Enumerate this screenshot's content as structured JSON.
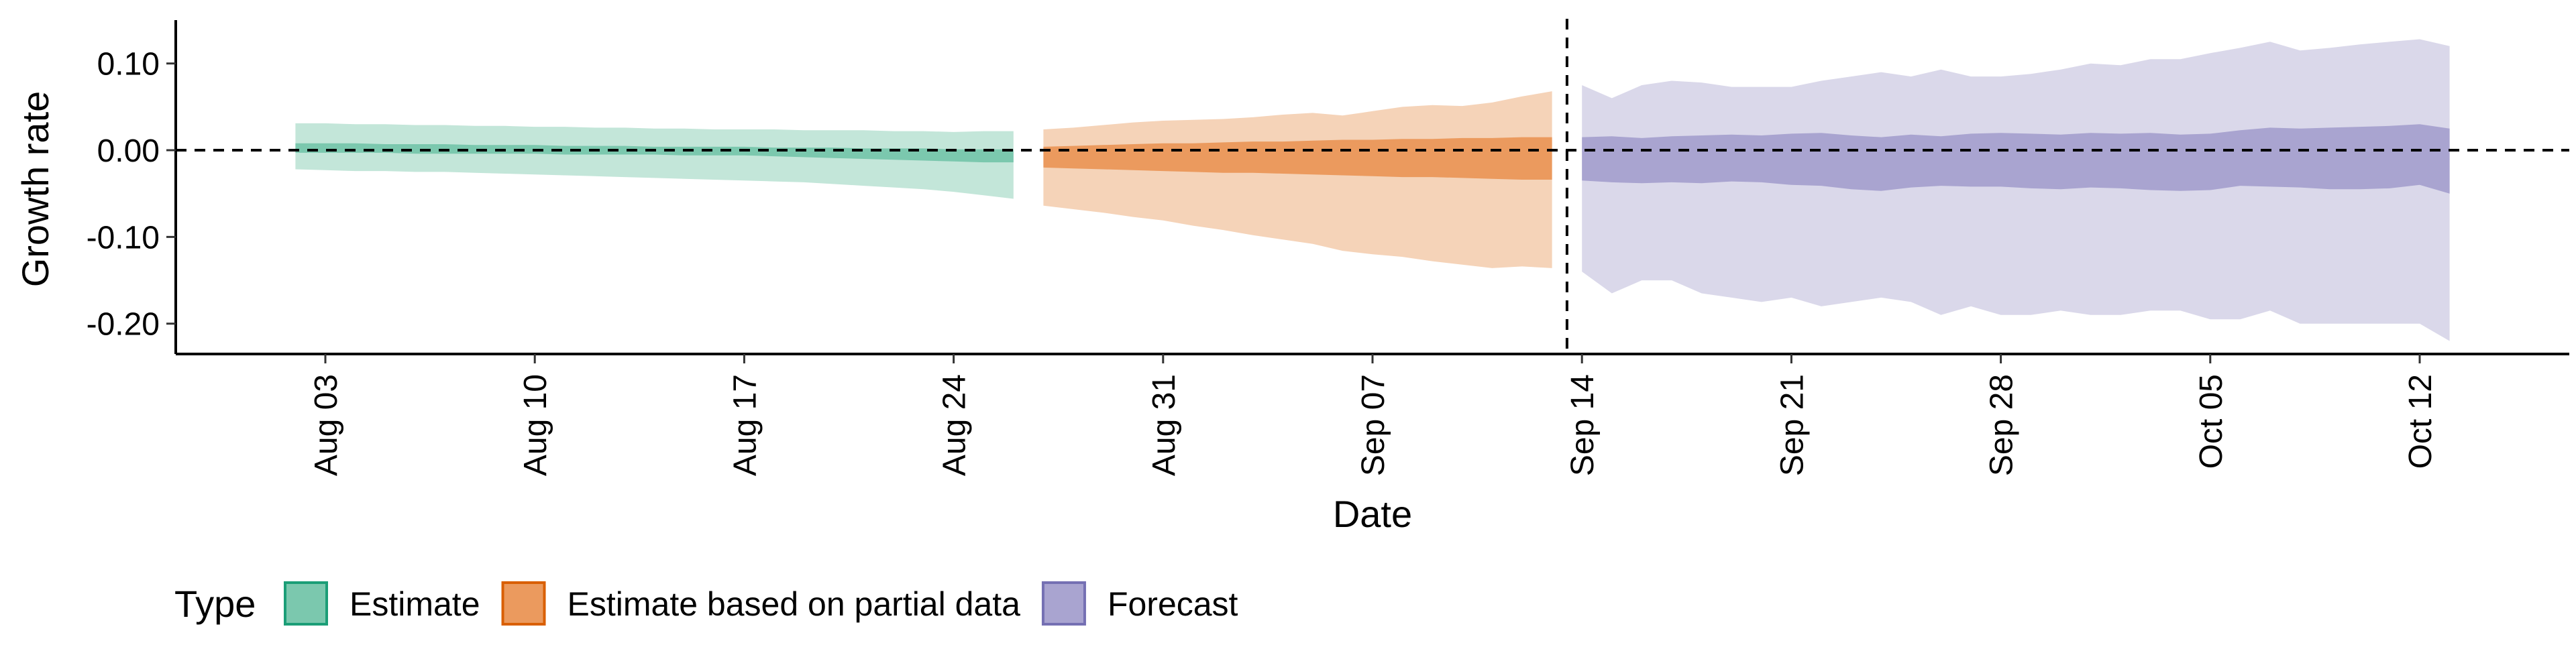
{
  "chart_data": {
    "type": "area",
    "ylabel": "Growth rate",
    "xlabel": "Date",
    "year": "2020",
    "x_range": [
      "2020-07-29",
      "2020-10-17"
    ],
    "ylim": [
      -0.235,
      0.15
    ],
    "yticks": [
      0.1,
      0.0,
      -0.1,
      -0.2
    ],
    "ytick_labels": [
      "0.10",
      "0.00",
      "-0.10",
      "-0.20"
    ],
    "xticks": [
      "2020-08-03",
      "2020-08-10",
      "2020-08-17",
      "2020-08-24",
      "2020-08-31",
      "2020-09-07",
      "2020-09-14",
      "2020-09-21",
      "2020-09-28",
      "2020-10-05",
      "2020-10-12"
    ],
    "xtick_labels": [
      "Aug 03",
      "Aug 10",
      "Aug 17",
      "Aug 24",
      "Aug 31",
      "Sep 07",
      "Sep 14",
      "Sep 21",
      "Sep 28",
      "Oct 05",
      "Oct 12"
    ],
    "reference_lines": {
      "horizontal_y": 0,
      "vertical_date": "2020-09-13"
    },
    "grid": false,
    "legend": {
      "title": "Type",
      "position": "bottom-left",
      "entries": [
        {
          "label": "Estimate",
          "fill": "#7BC8AE",
          "border": "#1B9E77"
        },
        {
          "label": "Estimate based on partial data",
          "fill": "#EB9A5E",
          "border": "#D95F02"
        },
        {
          "label": "Forecast",
          "fill": "#A9A4D0",
          "border": "#7570B3"
        }
      ]
    },
    "series": [
      {
        "name": "Estimate",
        "outer_color": "#C3E6D9",
        "inner_color": "#7BC8AE",
        "x": [
          "2020-08-02",
          "2020-08-03",
          "2020-08-04",
          "2020-08-05",
          "2020-08-06",
          "2020-08-07",
          "2020-08-08",
          "2020-08-09",
          "2020-08-10",
          "2020-08-11",
          "2020-08-12",
          "2020-08-13",
          "2020-08-14",
          "2020-08-15",
          "2020-08-16",
          "2020-08-17",
          "2020-08-18",
          "2020-08-19",
          "2020-08-20",
          "2020-08-21",
          "2020-08-22",
          "2020-08-23",
          "2020-08-24",
          "2020-08-25",
          "2020-08-26"
        ],
        "outer_upper": [
          0.031,
          0.031,
          0.03,
          0.03,
          0.029,
          0.029,
          0.028,
          0.028,
          0.027,
          0.027,
          0.026,
          0.026,
          0.025,
          0.025,
          0.024,
          0.024,
          0.024,
          0.023,
          0.023,
          0.023,
          0.022,
          0.022,
          0.021,
          0.022,
          0.022
        ],
        "outer_lower": [
          -0.022,
          -0.023,
          -0.024,
          -0.024,
          -0.025,
          -0.025,
          -0.026,
          -0.027,
          -0.028,
          -0.029,
          -0.03,
          -0.031,
          -0.032,
          -0.033,
          -0.034,
          -0.035,
          -0.036,
          -0.037,
          -0.039,
          -0.041,
          -0.043,
          -0.045,
          -0.048,
          -0.052,
          -0.056
        ],
        "inner_upper": [
          0.008,
          0.008,
          0.008,
          0.007,
          0.007,
          0.007,
          0.006,
          0.006,
          0.006,
          0.005,
          0.005,
          0.005,
          0.004,
          0.004,
          0.004,
          0.004,
          0.003,
          0.003,
          0.003,
          0.002,
          0.002,
          0.002,
          0.001,
          0.001,
          0.001
        ],
        "inner_lower": [
          -0.003,
          -0.003,
          -0.003,
          -0.003,
          -0.004,
          -0.004,
          -0.004,
          -0.004,
          -0.004,
          -0.005,
          -0.005,
          -0.005,
          -0.005,
          -0.006,
          -0.006,
          -0.006,
          -0.007,
          -0.008,
          -0.009,
          -0.01,
          -0.011,
          -0.012,
          -0.013,
          -0.014,
          -0.014
        ]
      },
      {
        "name": "Estimate based on partial data",
        "outer_color": "#F5D3B8",
        "inner_color": "#EB9A5E",
        "x": [
          "2020-08-27",
          "2020-08-28",
          "2020-08-29",
          "2020-08-30",
          "2020-08-31",
          "2020-09-01",
          "2020-09-02",
          "2020-09-03",
          "2020-09-04",
          "2020-09-05",
          "2020-09-06",
          "2020-09-07",
          "2020-09-08",
          "2020-09-09",
          "2020-09-10",
          "2020-09-11",
          "2020-09-12",
          "2020-09-13"
        ],
        "outer_upper": [
          0.024,
          0.026,
          0.029,
          0.032,
          0.034,
          0.035,
          0.036,
          0.038,
          0.041,
          0.043,
          0.04,
          0.045,
          0.05,
          0.052,
          0.051,
          0.055,
          0.062,
          0.068
        ],
        "outer_lower": [
          -0.064,
          -0.068,
          -0.072,
          -0.077,
          -0.081,
          -0.087,
          -0.092,
          -0.098,
          -0.103,
          -0.108,
          -0.116,
          -0.12,
          -0.123,
          -0.128,
          -0.132,
          -0.136,
          -0.134,
          -0.136
        ],
        "inner_upper": [
          0.004,
          0.005,
          0.006,
          0.007,
          0.008,
          0.008,
          0.009,
          0.01,
          0.01,
          0.011,
          0.012,
          0.012,
          0.013,
          0.013,
          0.014,
          0.014,
          0.015,
          0.015
        ],
        "inner_lower": [
          -0.02,
          -0.021,
          -0.022,
          -0.023,
          -0.024,
          -0.025,
          -0.026,
          -0.026,
          -0.027,
          -0.028,
          -0.029,
          -0.03,
          -0.031,
          -0.031,
          -0.032,
          -0.033,
          -0.034,
          -0.034
        ]
      },
      {
        "name": "Forecast",
        "outer_color": "#DAD8EA",
        "inner_color": "#A9A4D0",
        "x": [
          "2020-09-14",
          "2020-09-15",
          "2020-09-16",
          "2020-09-17",
          "2020-09-18",
          "2020-09-19",
          "2020-09-20",
          "2020-09-21",
          "2020-09-22",
          "2020-09-23",
          "2020-09-24",
          "2020-09-25",
          "2020-09-26",
          "2020-09-27",
          "2020-09-28",
          "2020-09-29",
          "2020-09-30",
          "2020-10-01",
          "2020-10-02",
          "2020-10-03",
          "2020-10-04",
          "2020-10-05",
          "2020-10-06",
          "2020-10-07",
          "2020-10-08",
          "2020-10-09",
          "2020-10-10",
          "2020-10-11",
          "2020-10-12",
          "2020-10-13"
        ],
        "outer_upper": [
          0.075,
          0.06,
          0.075,
          0.08,
          0.078,
          0.073,
          0.073,
          0.073,
          0.08,
          0.085,
          0.09,
          0.085,
          0.093,
          0.085,
          0.085,
          0.088,
          0.093,
          0.1,
          0.098,
          0.105,
          0.105,
          0.112,
          0.118,
          0.125,
          0.115,
          0.118,
          0.122,
          0.125,
          0.128,
          0.12
        ],
        "outer_lower": [
          -0.14,
          -0.165,
          -0.15,
          -0.15,
          -0.165,
          -0.17,
          -0.175,
          -0.17,
          -0.18,
          -0.175,
          -0.17,
          -0.175,
          -0.19,
          -0.18,
          -0.19,
          -0.19,
          -0.185,
          -0.19,
          -0.19,
          -0.185,
          -0.185,
          -0.195,
          -0.195,
          -0.185,
          -0.2,
          -0.2,
          -0.2,
          -0.2,
          -0.2,
          -0.22
        ],
        "inner_upper": [
          0.015,
          0.016,
          0.014,
          0.016,
          0.017,
          0.018,
          0.017,
          0.019,
          0.02,
          0.017,
          0.015,
          0.018,
          0.016,
          0.019,
          0.02,
          0.019,
          0.018,
          0.02,
          0.019,
          0.02,
          0.018,
          0.019,
          0.023,
          0.026,
          0.025,
          0.026,
          0.027,
          0.028,
          0.03,
          0.025
        ],
        "inner_lower": [
          -0.035,
          -0.037,
          -0.038,
          -0.037,
          -0.038,
          -0.036,
          -0.037,
          -0.04,
          -0.041,
          -0.045,
          -0.047,
          -0.043,
          -0.041,
          -0.042,
          -0.042,
          -0.044,
          -0.045,
          -0.043,
          -0.044,
          -0.046,
          -0.047,
          -0.046,
          -0.041,
          -0.042,
          -0.043,
          -0.045,
          -0.045,
          -0.044,
          -0.04,
          -0.05
        ]
      }
    ]
  }
}
